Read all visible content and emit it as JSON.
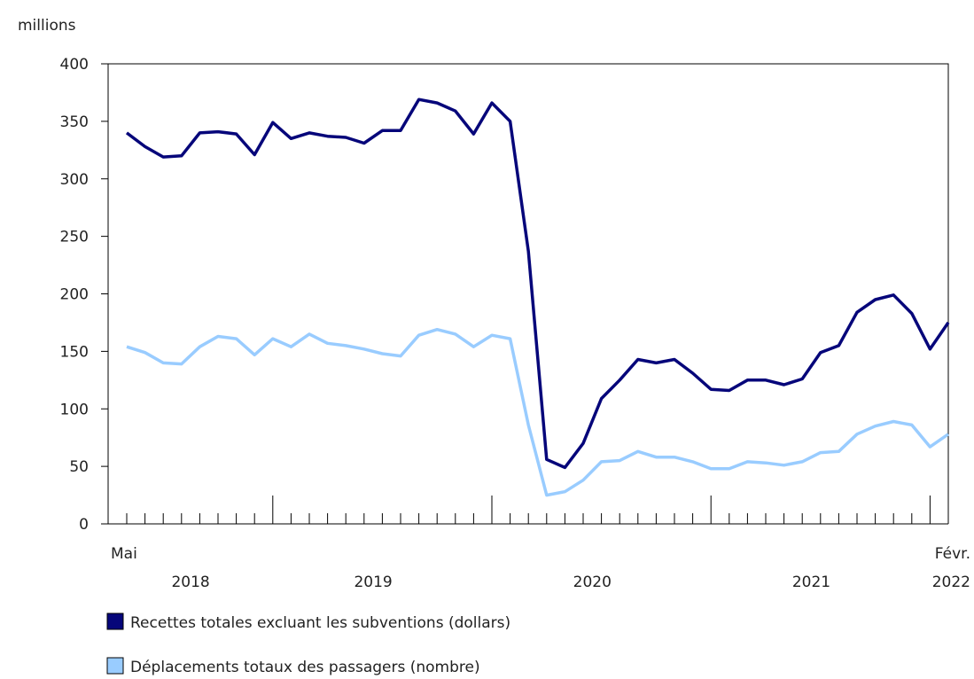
{
  "chart_data": {
    "type": "line",
    "y_label": "millions",
    "categories": [
      "Mai",
      null,
      null,
      null,
      null,
      null,
      null,
      null,
      null,
      null,
      null,
      null,
      null,
      null,
      null,
      null,
      null,
      null,
      null,
      null,
      null,
      null,
      null,
      null,
      null,
      null,
      null,
      null,
      null,
      null,
      null,
      null,
      null,
      null,
      null,
      null,
      null,
      null,
      null,
      null,
      null,
      null,
      null,
      null,
      null,
      "Févr."
    ],
    "years": [
      "2018",
      "2019",
      "2020",
      "2021",
      "2022"
    ],
    "series": [
      {
        "name": "Recettes totales excluant les subventions (dollars)",
        "color": "#06067a",
        "values": [
          340,
          328,
          319,
          320,
          340,
          341,
          339,
          321,
          349,
          335,
          340,
          337,
          336,
          331,
          342,
          342,
          369,
          366,
          359,
          339,
          366,
          350,
          237,
          56,
          49,
          70,
          109,
          125,
          143,
          140,
          143,
          131,
          117,
          116,
          125,
          125,
          121,
          126,
          149,
          155,
          184,
          195,
          199,
          183,
          152,
          175
        ]
      },
      {
        "name": "Déplacements totaux des passagers (nombre)",
        "color": "#99ccff",
        "values": [
          154,
          149,
          140,
          139,
          154,
          163,
          161,
          147,
          161,
          154,
          165,
          157,
          155,
          152,
          148,
          146,
          164,
          169,
          165,
          154,
          164,
          161,
          86,
          25,
          28,
          38,
          54,
          55,
          63,
          58,
          58,
          54,
          48,
          48,
          54,
          53,
          51,
          54,
          62,
          63,
          78,
          85,
          89,
          86,
          67,
          78
        ]
      }
    ],
    "ylim": [
      0,
      400
    ],
    "yticks": [
      0,
      50,
      100,
      150,
      200,
      250,
      300,
      350,
      400
    ]
  }
}
